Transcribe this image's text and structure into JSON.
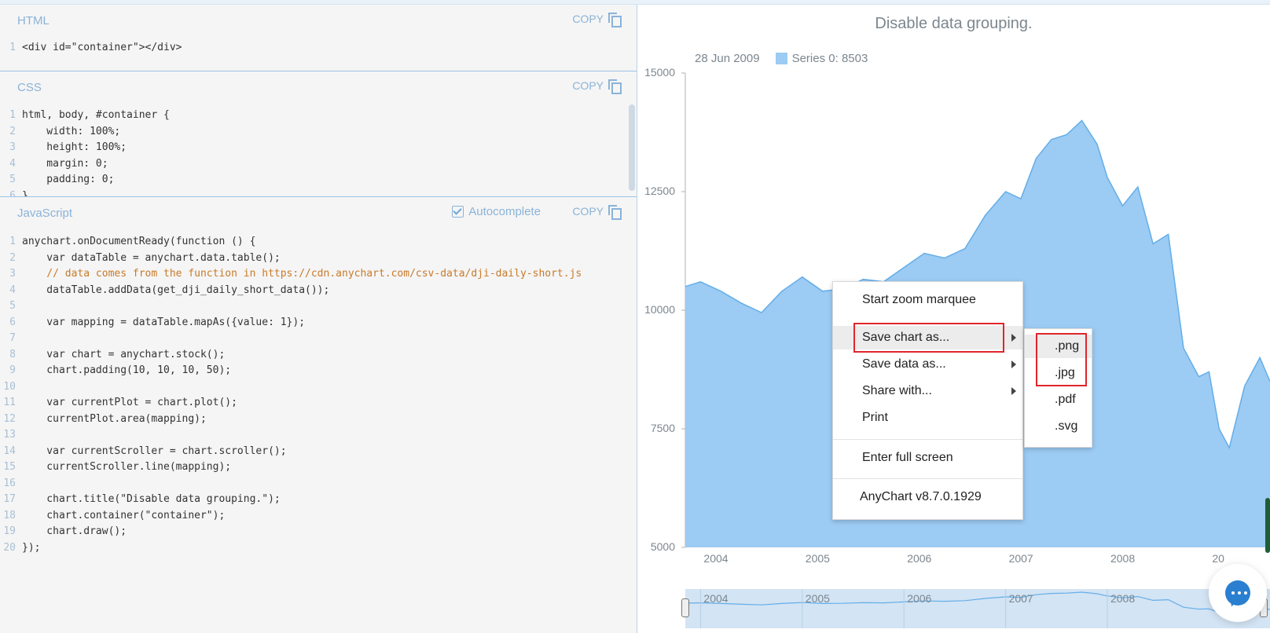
{
  "panels": {
    "html": {
      "title": "HTML",
      "copy_label": "COPY",
      "lines": [
        "<div id=\"container\"></div>"
      ]
    },
    "css": {
      "title": "CSS",
      "copy_label": "COPY",
      "lines": [
        "html, body, #container {",
        "    width: 100%;",
        "    height: 100%;",
        "    margin: 0;",
        "    padding: 0;",
        "}"
      ]
    },
    "js": {
      "title": "JavaScript",
      "autocomplete_label": "Autocomplete",
      "copy_label": "COPY",
      "lines": [
        "anychart.onDocumentReady(function () {",
        "    var dataTable = anychart.data.table();",
        "    // data comes from the function in https://cdn.anychart.com/csv-data/dji-daily-short.js",
        "    dataTable.addData(get_dji_daily_short_data());",
        "",
        "    var mapping = dataTable.mapAs({value: 1});",
        "",
        "    var chart = anychart.stock();",
        "    chart.padding(10, 10, 10, 50);",
        "",
        "    var currentPlot = chart.plot();",
        "    currentPlot.area(mapping);",
        "",
        "    var currentScroller = chart.scroller();",
        "    currentScroller.line(mapping);",
        "",
        "    chart.title(\"Disable data grouping.\");",
        "    chart.container(\"container\");",
        "    chart.draw();",
        "});"
      ]
    }
  },
  "chart_data": {
    "type": "area",
    "title": "Disable data grouping.",
    "tooltip_date": "28 Jun 2009",
    "series": [
      {
        "name": "Series 0",
        "legend_value": "8503",
        "color": "#9ccbf3",
        "x": [
          2003.85,
          2004.0,
          2004.2,
          2004.4,
          2004.6,
          2004.8,
          2005.0,
          2005.2,
          2005.4,
          2005.6,
          2005.8,
          2006.0,
          2006.2,
          2006.4,
          2006.6,
          2006.8,
          2007.0,
          2007.15,
          2007.3,
          2007.45,
          2007.6,
          2007.75,
          2007.9,
          2008.0,
          2008.15,
          2008.3,
          2008.45,
          2008.6,
          2008.75,
          2008.9,
          2009.0,
          2009.1,
          2009.2,
          2009.35,
          2009.5,
          2009.6
        ],
        "values": [
          10500,
          10600,
          10400,
          10150,
          9950,
          10400,
          10700,
          10400,
          10450,
          10650,
          10600,
          10900,
          11200,
          11100,
          11300,
          12000,
          12500,
          12350,
          13200,
          13600,
          13700,
          14000,
          13500,
          12800,
          12200,
          12600,
          11400,
          11600,
          9200,
          8600,
          8700,
          7500,
          7100,
          8400,
          9000,
          8500
        ]
      }
    ],
    "ylim": [
      5000,
      15000
    ],
    "y_ticks": [
      "15000",
      "12500",
      "10000",
      "7500",
      "5000"
    ],
    "x_ticks": [
      "2004",
      "2005",
      "2006",
      "2007",
      "2008",
      "20"
    ],
    "scroller_ticks": [
      "2004",
      "2005",
      "2006",
      "2007",
      "2008"
    ]
  },
  "context_menu": {
    "items": [
      "Start zoom marquee",
      "Save chart as...",
      "Save data as...",
      "Share with...",
      "Print",
      "Enter full screen",
      "AnyChart v8.7.0.1929"
    ],
    "submenu": [
      ".png",
      ".jpg",
      ".pdf",
      ".svg"
    ]
  }
}
